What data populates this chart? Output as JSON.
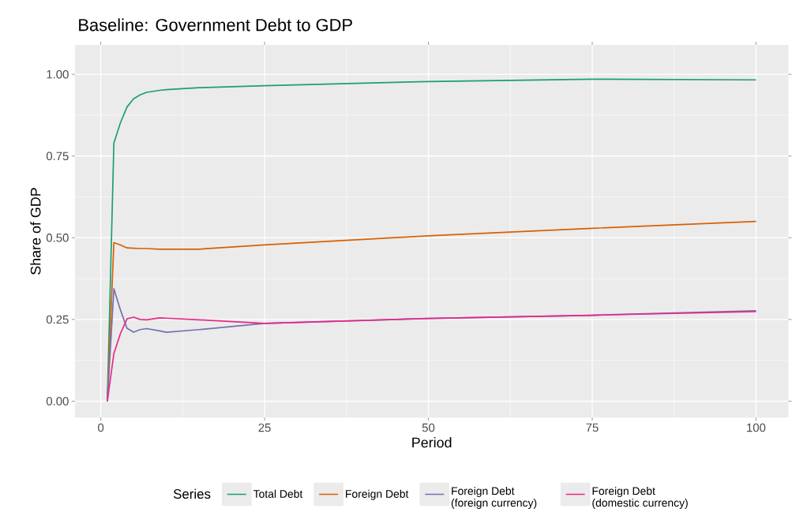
{
  "chart_data": {
    "type": "line",
    "title": "Baseline: Government Debt to GDP",
    "xlabel": "Period",
    "ylabel": "Share of GDP",
    "legend_title": "Series",
    "x": [
      1,
      2,
      3,
      4,
      5,
      6,
      7,
      9,
      10,
      15,
      25,
      50,
      75,
      100
    ],
    "series": [
      {
        "name": "Total Debt",
        "color": "#1b9e77",
        "values": [
          0,
          0.79,
          0.852,
          0.9,
          0.925,
          0.937,
          0.945,
          0.951,
          0.953,
          0.959,
          0.965,
          0.978,
          0.985,
          0.983
        ]
      },
      {
        "name": "Foreign Debt",
        "color": "#d95f02",
        "values": [
          0,
          0.485,
          0.478,
          0.469,
          0.468,
          0.467,
          0.467,
          0.465,
          0.465,
          0.465,
          0.478,
          0.506,
          0.529,
          0.55
        ]
      },
      {
        "name": "Foreign Debt (foreign currency)",
        "color": "#7570b3",
        "values": [
          0,
          0.344,
          0.279,
          0.223,
          0.211,
          0.219,
          0.222,
          0.215,
          0.211,
          0.219,
          0.238,
          0.253,
          0.263,
          0.277
        ]
      },
      {
        "name": "Foreign Debt (domestic currency)",
        "color": "#e7298a",
        "values": [
          0,
          0.146,
          0.207,
          0.252,
          0.257,
          0.25,
          0.249,
          0.255,
          0.254,
          0.249,
          0.238,
          0.253,
          0.263,
          0.274
        ]
      }
    ],
    "xlim": [
      -3.95,
      104.95
    ],
    "ylim": [
      -0.05,
      1.09
    ],
    "xticks": [
      0,
      25,
      50,
      75,
      100
    ],
    "yticks": [
      {
        "value": 0,
        "label": "0.00"
      },
      {
        "value": 0.25,
        "label": "0.25"
      },
      {
        "value": 0.5,
        "label": "0.50"
      },
      {
        "value": 0.75,
        "label": "0.75"
      },
      {
        "value": 1,
        "label": "1.00"
      }
    ],
    "grid": true,
    "legend": "bottom",
    "marker": "none",
    "line_style": "solid"
  }
}
